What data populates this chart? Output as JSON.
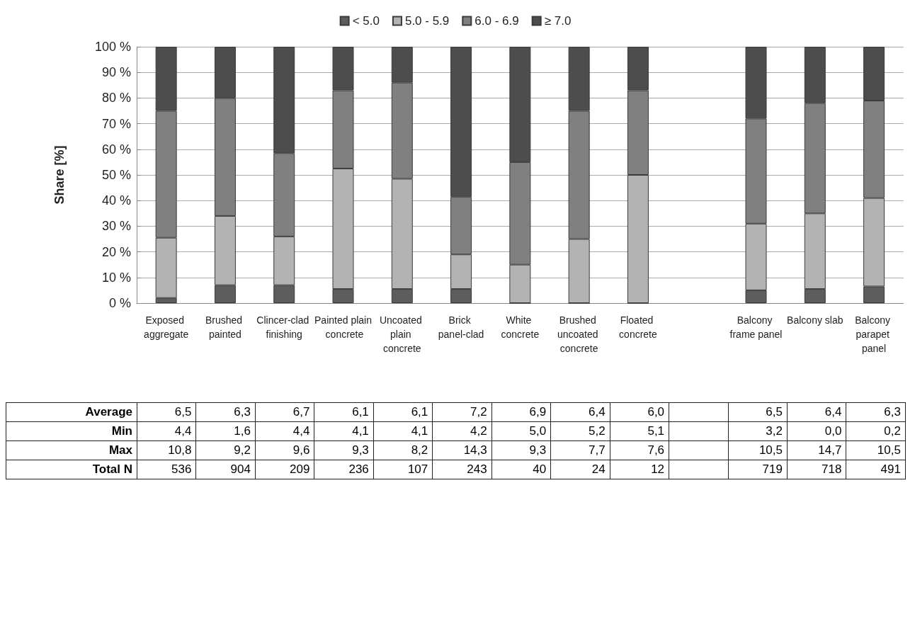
{
  "chart_data": [
    {
      "type": "bar",
      "stacked": true,
      "ylabel": "Share [%]",
      "categories": [
        "Exposed aggregate",
        "Brushed painted",
        "Clincer-clad finishing",
        "Painted plain concrete",
        "Uncoated plain concrete",
        "Brick panel-clad",
        "White concrete",
        "Brushed uncoated concrete",
        "Floated concrete",
        null,
        "Balcony frame panel",
        "Balcony slab",
        "Balcony parapet panel"
      ],
      "series": [
        {
          "name": "< 5.0",
          "color": "#5d5d5d",
          "values": [
            2,
            7,
            7,
            5.5,
            5.5,
            5.5,
            0,
            0,
            0,
            null,
            5,
            5.5,
            6.5
          ]
        },
        {
          "name": "5.0 - 5.9",
          "color": "#b3b3b3",
          "values": [
            23.5,
            27,
            19,
            47,
            43,
            13.5,
            15,
            25,
            50,
            null,
            26,
            29.5,
            34.5
          ]
        },
        {
          "name": "6.0 - 6.9",
          "color": "#808080",
          "values": [
            49.5,
            46,
            32.5,
            30.5,
            37.5,
            22.5,
            40,
            50,
            33,
            null,
            41,
            43,
            38
          ]
        },
        {
          "name": "≥ 7.0",
          "color": "#4d4d4d",
          "values": [
            25,
            20,
            41.5,
            17,
            14,
            58.5,
            45,
            25,
            17,
            null,
            28,
            22,
            21
          ]
        }
      ],
      "ylim": [
        0,
        100
      ],
      "yticks": [
        {
          "value": 0,
          "label": "0 %"
        },
        {
          "value": 10,
          "label": "10 %"
        },
        {
          "value": 20,
          "label": "20 %"
        },
        {
          "value": 30,
          "label": "30 %"
        },
        {
          "value": 40,
          "label": "40 %"
        },
        {
          "value": 50,
          "label": "50 %"
        },
        {
          "value": 60,
          "label": "60 %"
        },
        {
          "value": 70,
          "label": "70 %"
        },
        {
          "value": 80,
          "label": "80 %"
        },
        {
          "value": 90,
          "label": "90 %"
        },
        {
          "value": 100,
          "label": "100 %"
        }
      ],
      "grid": "y",
      "legend": "top"
    },
    {
      "type": "other",
      "y_categories": [
        "Average",
        "Min",
        "Max",
        "Total N"
      ],
      "cell_labels": [
        [
          "6,5",
          "6,3",
          "6,7",
          "6,1",
          "6,1",
          "7,2",
          "6,9",
          "6,4",
          "6,0",
          null,
          "6,5",
          "6,4",
          "6,3"
        ],
        [
          "4,4",
          "1,6",
          "4,4",
          "4,1",
          "4,1",
          "4,2",
          "5,0",
          "5,2",
          "5,1",
          null,
          "3,2",
          "0,0",
          "0,2"
        ],
        [
          "10,8",
          "9,2",
          "9,6",
          "9,3",
          "8,2",
          "14,3",
          "9,3",
          "7,7",
          "7,6",
          null,
          "10,5",
          "14,7",
          "10,5"
        ],
        [
          "536",
          "904",
          "209",
          "236",
          "107",
          "243",
          "40",
          "24",
          "12",
          null,
          "719",
          "718",
          "491"
        ]
      ]
    }
  ]
}
